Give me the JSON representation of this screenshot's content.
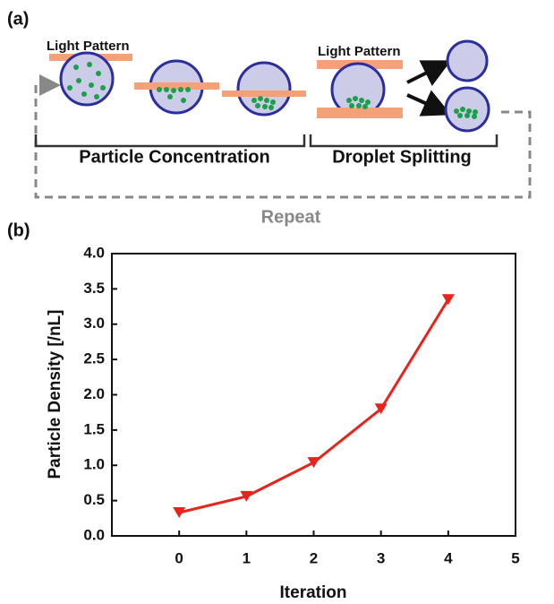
{
  "diagram": {
    "panel_a": "(a)",
    "light_pattern_1": "Light Pattern",
    "light_pattern_2": "Light Pattern",
    "step_1": "Particle Concentration",
    "step_2": "Droplet Splitting",
    "loop": "Repeat",
    "panel_b": "(b)"
  },
  "chart_data": {
    "type": "line",
    "x_label": "Iteration",
    "y_label": "Particle Density [/nL]",
    "x": [
      0,
      1,
      2,
      3,
      4
    ],
    "values": [
      0.33,
      0.56,
      1.04,
      1.8,
      3.35
    ],
    "color": "#e8231c",
    "xlim": [
      -1,
      5
    ],
    "xticks": [
      0,
      1,
      2,
      3,
      4,
      5
    ],
    "ylim": [
      0,
      4
    ],
    "yticks": [
      {
        "value": 0,
        "label": "0.0"
      },
      0.5,
      {
        "value": 1,
        "label": "1.0"
      },
      1.5,
      {
        "value": 2,
        "label": "2.0"
      },
      2.5,
      {
        "value": 3,
        "label": "3.0"
      },
      3.5,
      {
        "value": 4,
        "label": "4.0"
      }
    ]
  }
}
